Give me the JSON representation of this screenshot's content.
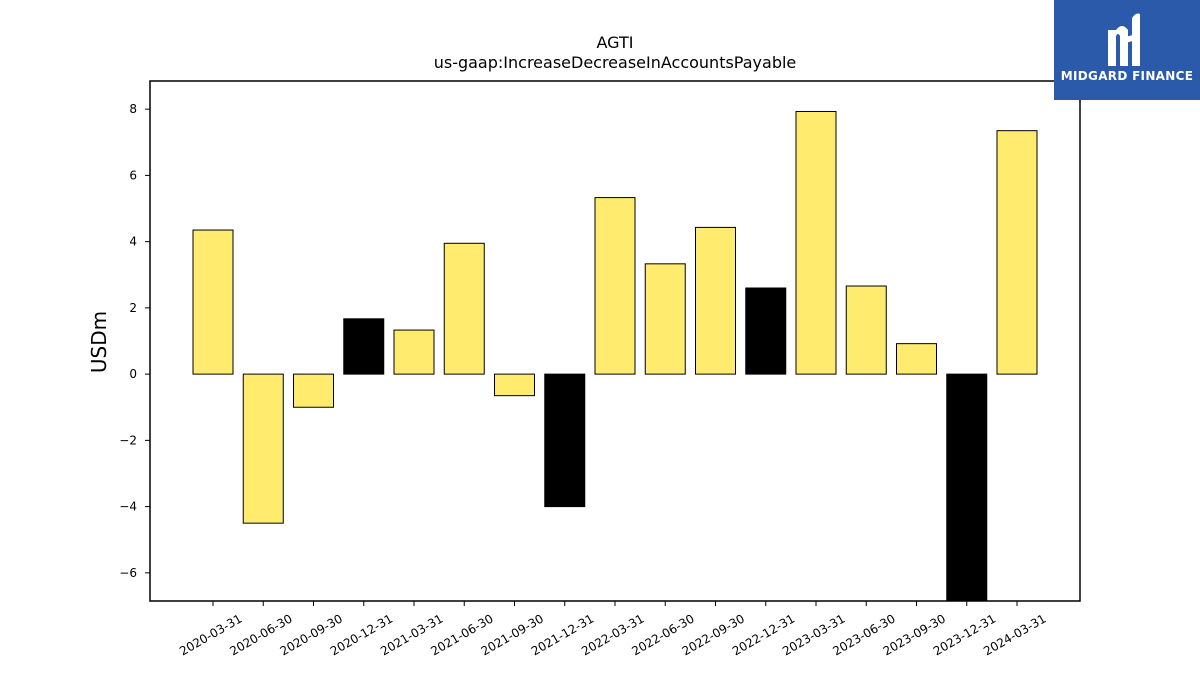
{
  "brand": {
    "name": "MIDGARD FINANCE",
    "background": "#2a5aa9",
    "foreground": "#ffffff",
    "mark_icon": "midgard-m-logo-icon"
  },
  "chart_data": {
    "type": "bar",
    "title": "AGTI",
    "subtitle": "us-gaap:IncreaseDecreaseInAccountsPayable",
    "xlabel": "",
    "ylabel": "USDm",
    "ylim": [
      -6.85,
      8.85
    ],
    "yticks": [
      -6,
      -4,
      -2,
      0,
      2,
      4,
      6,
      8
    ],
    "grid": false,
    "categories": [
      "2020-03-31",
      "2020-06-30",
      "2020-09-30",
      "2020-12-31",
      "2021-03-31",
      "2021-06-30",
      "2021-09-30",
      "2021-12-31",
      "2022-03-31",
      "2022-06-30",
      "2022-09-30",
      "2022-12-31",
      "2023-03-31",
      "2023-06-30",
      "2023-09-30",
      "2023-12-31",
      "2024-03-31"
    ],
    "values": [
      4.35,
      -4.5,
      -1.0,
      1.67,
      1.33,
      3.95,
      -0.65,
      -4.0,
      5.33,
      3.33,
      4.43,
      2.6,
      7.93,
      2.66,
      0.92,
      -6.85,
      7.35
    ],
    "bar_colors": [
      "#ffec6e",
      "#ffec6e",
      "#ffec6e",
      "#000000",
      "#ffec6e",
      "#ffec6e",
      "#ffec6e",
      "#000000",
      "#ffec6e",
      "#ffec6e",
      "#ffec6e",
      "#000000",
      "#ffec6e",
      "#ffec6e",
      "#ffec6e",
      "#000000",
      "#ffec6e"
    ],
    "highlight_color": "#000000",
    "base_color": "#ffec6e"
  }
}
